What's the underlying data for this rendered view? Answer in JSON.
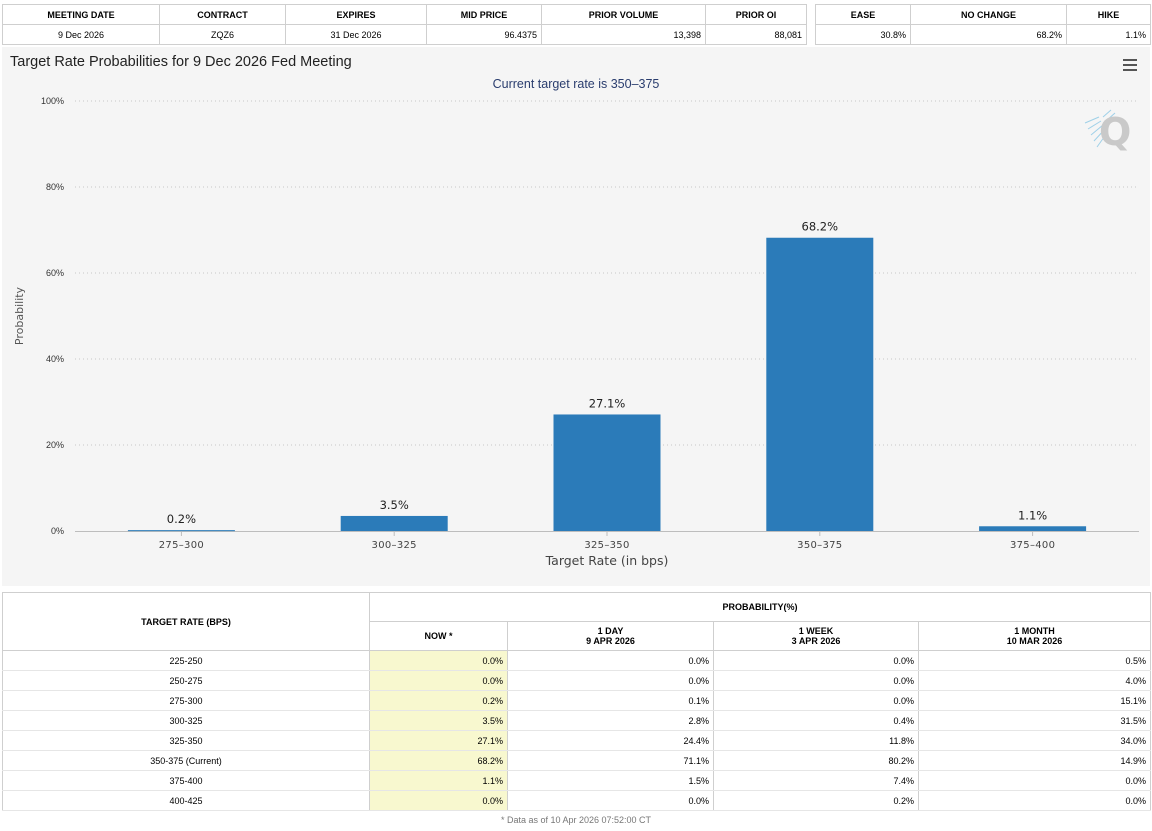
{
  "summary": {
    "headers": [
      "MEETING DATE",
      "CONTRACT",
      "EXPIRES",
      "MID PRICE",
      "PRIOR VOLUME",
      "PRIOR OI"
    ],
    "values": [
      "9 Dec 2026",
      "ZQZ6",
      "31 Dec 2026",
      "96.4375",
      "13,398",
      "88,081"
    ]
  },
  "outcome": {
    "headers": [
      "EASE",
      "NO CHANGE",
      "HIKE"
    ],
    "values": [
      "30.8%",
      "68.2%",
      "1.1%"
    ]
  },
  "chart": {
    "title": "Target Rate Probabilities for 9 Dec 2026 Fed Meeting",
    "subtitle": "Current target rate is 350–375",
    "menu_icon": "hamburger-menu-icon",
    "logo_icon": "q-logo-icon",
    "bar_color": "#2b7bb9"
  },
  "chart_data": {
    "type": "bar",
    "title": "Target Rate Probabilities for 9 Dec 2026 Fed Meeting",
    "subtitle": "Current target rate is 350–375",
    "categories": [
      "275–300",
      "300–325",
      "325–350",
      "350–375",
      "375–400"
    ],
    "values": [
      0.2,
      3.5,
      27.1,
      68.2,
      1.1
    ],
    "data_labels": [
      "0.2%",
      "3.5%",
      "27.1%",
      "68.2%",
      "1.1%"
    ],
    "xlabel": "Target Rate (in bps)",
    "ylabel": "Probability",
    "ylim": [
      0,
      100
    ],
    "yticks": [
      0,
      20,
      40,
      60,
      80,
      100
    ],
    "ytick_labels": [
      "0%",
      "20%",
      "40%",
      "60%",
      "80%",
      "100%"
    ],
    "grid": true,
    "legend": "none"
  },
  "prob_table": {
    "target_header": "TARGET RATE (BPS)",
    "prob_header": "PROBABILITY(%)",
    "columns": [
      {
        "line1": "NOW *",
        "line2": ""
      },
      {
        "line1": "1 DAY",
        "line2": "9 APR 2026"
      },
      {
        "line1": "1 WEEK",
        "line2": "3 APR 2026"
      },
      {
        "line1": "1 MONTH",
        "line2": "10 MAR 2026"
      }
    ],
    "rows": [
      {
        "rate": "225-250",
        "values": [
          "0.0%",
          "0.0%",
          "0.0%",
          "0.5%"
        ]
      },
      {
        "rate": "250-275",
        "values": [
          "0.0%",
          "0.0%",
          "0.0%",
          "4.0%"
        ]
      },
      {
        "rate": "275-300",
        "values": [
          "0.2%",
          "0.1%",
          "0.0%",
          "15.1%"
        ]
      },
      {
        "rate": "300-325",
        "values": [
          "3.5%",
          "2.8%",
          "0.4%",
          "31.5%"
        ]
      },
      {
        "rate": "325-350",
        "values": [
          "27.1%",
          "24.4%",
          "11.8%",
          "34.0%"
        ]
      },
      {
        "rate": "350-375 (Current)",
        "values": [
          "68.2%",
          "71.1%",
          "80.2%",
          "14.9%"
        ]
      },
      {
        "rate": "375-400",
        "values": [
          "1.1%",
          "1.5%",
          "7.4%",
          "0.0%"
        ]
      },
      {
        "rate": "400-425",
        "values": [
          "0.0%",
          "0.0%",
          "0.2%",
          "0.0%"
        ]
      }
    ],
    "footnote": "* Data as of 10 Apr 2026 07:52:00 CT"
  }
}
